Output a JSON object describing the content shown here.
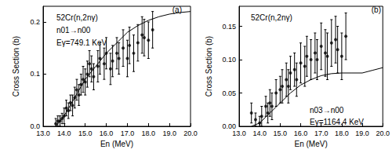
{
  "chart_data": [
    {
      "type": "scatter",
      "x_label": "En (MeV)",
      "y_label": "Cross Section (b)",
      "annotations": [
        "(a)",
        "52Cr(n,2nγ)",
        "n01→n00",
        "Eγ=749.1 KeV"
      ],
      "xlim": [
        13,
        20
      ],
      "xticks": [
        {
          "value": 13,
          "label": "13.0"
        },
        {
          "value": 14,
          "label": "14.0"
        },
        {
          "value": 15,
          "label": "15.0"
        },
        {
          "value": 16,
          "label": "16.0"
        },
        {
          "value": 17,
          "label": "17.0"
        },
        {
          "value": 18,
          "label": "18.0"
        },
        {
          "value": 19,
          "label": "19.0"
        },
        {
          "value": 20,
          "label": "20.0"
        }
      ],
      "ylim": [
        0,
        0.23
      ],
      "yticks": [
        {
          "value": 0,
          "label": "0.0"
        },
        0.1,
        0.2
      ],
      "grid": false,
      "series": [
        {
          "type": "scatter",
          "marker": "circle",
          "color": "#000000",
          "x": [
            13.6,
            13.7,
            13.8,
            13.9,
            14.0,
            14.1,
            14.2,
            14.3,
            14.4,
            14.5,
            14.6,
            14.7,
            14.8,
            14.9,
            15.0,
            15.1,
            15.2,
            15.3,
            15.4,
            15.6,
            15.7,
            15.9,
            16.0,
            16.2,
            16.3,
            16.5,
            16.6,
            16.8,
            17.0,
            17.1,
            17.3,
            17.5,
            17.7,
            17.8,
            18.0,
            18.2
          ],
          "values": [
            0.005,
            0.01,
            0.01,
            0.015,
            0.02,
            0.035,
            0.03,
            0.045,
            0.04,
            0.055,
            0.07,
            0.06,
            0.08,
            0.09,
            0.085,
            0.1,
            0.12,
            0.11,
            0.095,
            0.115,
            0.13,
            0.12,
            0.14,
            0.11,
            0.125,
            0.14,
            0.13,
            0.15,
            0.13,
            0.155,
            0.14,
            0.16,
            0.175,
            0.17,
            0.165,
            0.185
          ],
          "errors": [
            0.01,
            0.01,
            0.01,
            0.01,
            0.015,
            0.015,
            0.015,
            0.015,
            0.02,
            0.02,
            0.02,
            0.02,
            0.02,
            0.025,
            0.025,
            0.025,
            0.025,
            0.025,
            0.025,
            0.03,
            0.03,
            0.03,
            0.03,
            0.03,
            0.03,
            0.03,
            0.03,
            0.035,
            0.035,
            0.035,
            0.035,
            0.035,
            0.035,
            0.035,
            0.035,
            0.035
          ]
        },
        {
          "type": "line",
          "color": "#000000",
          "line_style": "solid",
          "x": [
            13.6,
            14.0,
            14.5,
            15.0,
            15.5,
            16.0,
            16.5,
            17.0,
            17.5,
            18.0,
            18.5,
            19.0,
            19.5,
            20.0
          ],
          "values": [
            0,
            0.02,
            0.055,
            0.09,
            0.115,
            0.14,
            0.16,
            0.18,
            0.193,
            0.203,
            0.21,
            0.215,
            0.218,
            0.22
          ]
        }
      ]
    },
    {
      "type": "scatter",
      "x_label": "En (MeV)",
      "y_label": "Cross Section (b)",
      "annotations": [
        "(b)",
        "52Cr(n,2nγ)",
        "n03→n00",
        "Eγ=1164.4 KeV"
      ],
      "xlim": [
        13,
        20
      ],
      "xticks": [
        {
          "value": 13,
          "label": "13.0"
        },
        {
          "value": 14,
          "label": "14.0"
        },
        {
          "value": 15,
          "label": "15.0"
        },
        {
          "value": 16,
          "label": "16.0"
        },
        {
          "value": 17,
          "label": "17.0"
        },
        {
          "value": 18,
          "label": "18.0"
        },
        {
          "value": 19,
          "label": "19.0"
        },
        {
          "value": 20,
          "label": "20.0"
        }
      ],
      "ylim": [
        0,
        0.18
      ],
      "yticks": [
        {
          "value": 0,
          "label": "0.00"
        },
        0.05,
        {
          "value": 0.1,
          "label": "0.10"
        },
        0.15
      ],
      "grid": false,
      "series": [
        {
          "type": "scatter",
          "marker": "circle",
          "color": "#000000",
          "x": [
            13.6,
            13.8,
            14.0,
            14.1,
            14.3,
            14.4,
            14.5,
            14.6,
            14.8,
            15.0,
            15.1,
            15.3,
            15.4,
            15.5,
            15.7,
            15.8,
            16.0,
            16.2,
            16.3,
            16.5,
            16.7,
            16.8,
            17.0,
            17.2,
            17.3,
            17.5,
            17.7,
            17.8,
            18.0,
            18.2
          ],
          "values": [
            0.02,
            0.01,
            0.005,
            0.015,
            0.03,
            0.02,
            0.035,
            0.03,
            0.05,
            0.055,
            0.06,
            0.07,
            0.06,
            0.08,
            0.085,
            0.07,
            0.095,
            0.09,
            0.105,
            0.1,
            0.11,
            0.1,
            0.12,
            0.11,
            0.105,
            0.125,
            0.13,
            0.115,
            0.105,
            0.135
          ],
          "errors": [
            0.015,
            0.01,
            0.01,
            0.015,
            0.015,
            0.015,
            0.02,
            0.02,
            0.02,
            0.02,
            0.025,
            0.025,
            0.025,
            0.025,
            0.025,
            0.025,
            0.03,
            0.03,
            0.03,
            0.03,
            0.03,
            0.03,
            0.035,
            0.035,
            0.035,
            0.035,
            0.035,
            0.035,
            0.035,
            0.035
          ]
        },
        {
          "type": "line",
          "color": "#000000",
          "line_style": "solid",
          "x": [
            13.6,
            14.0,
            14.5,
            15.0,
            15.5,
            16.0,
            16.5,
            17.0,
            17.5,
            18.0,
            18.5,
            19.0,
            19.5,
            20.0
          ],
          "values": [
            0,
            0.005,
            0.02,
            0.035,
            0.05,
            0.062,
            0.07,
            0.076,
            0.079,
            0.08,
            0.08,
            0.08,
            0.084,
            0.088
          ]
        }
      ]
    }
  ]
}
